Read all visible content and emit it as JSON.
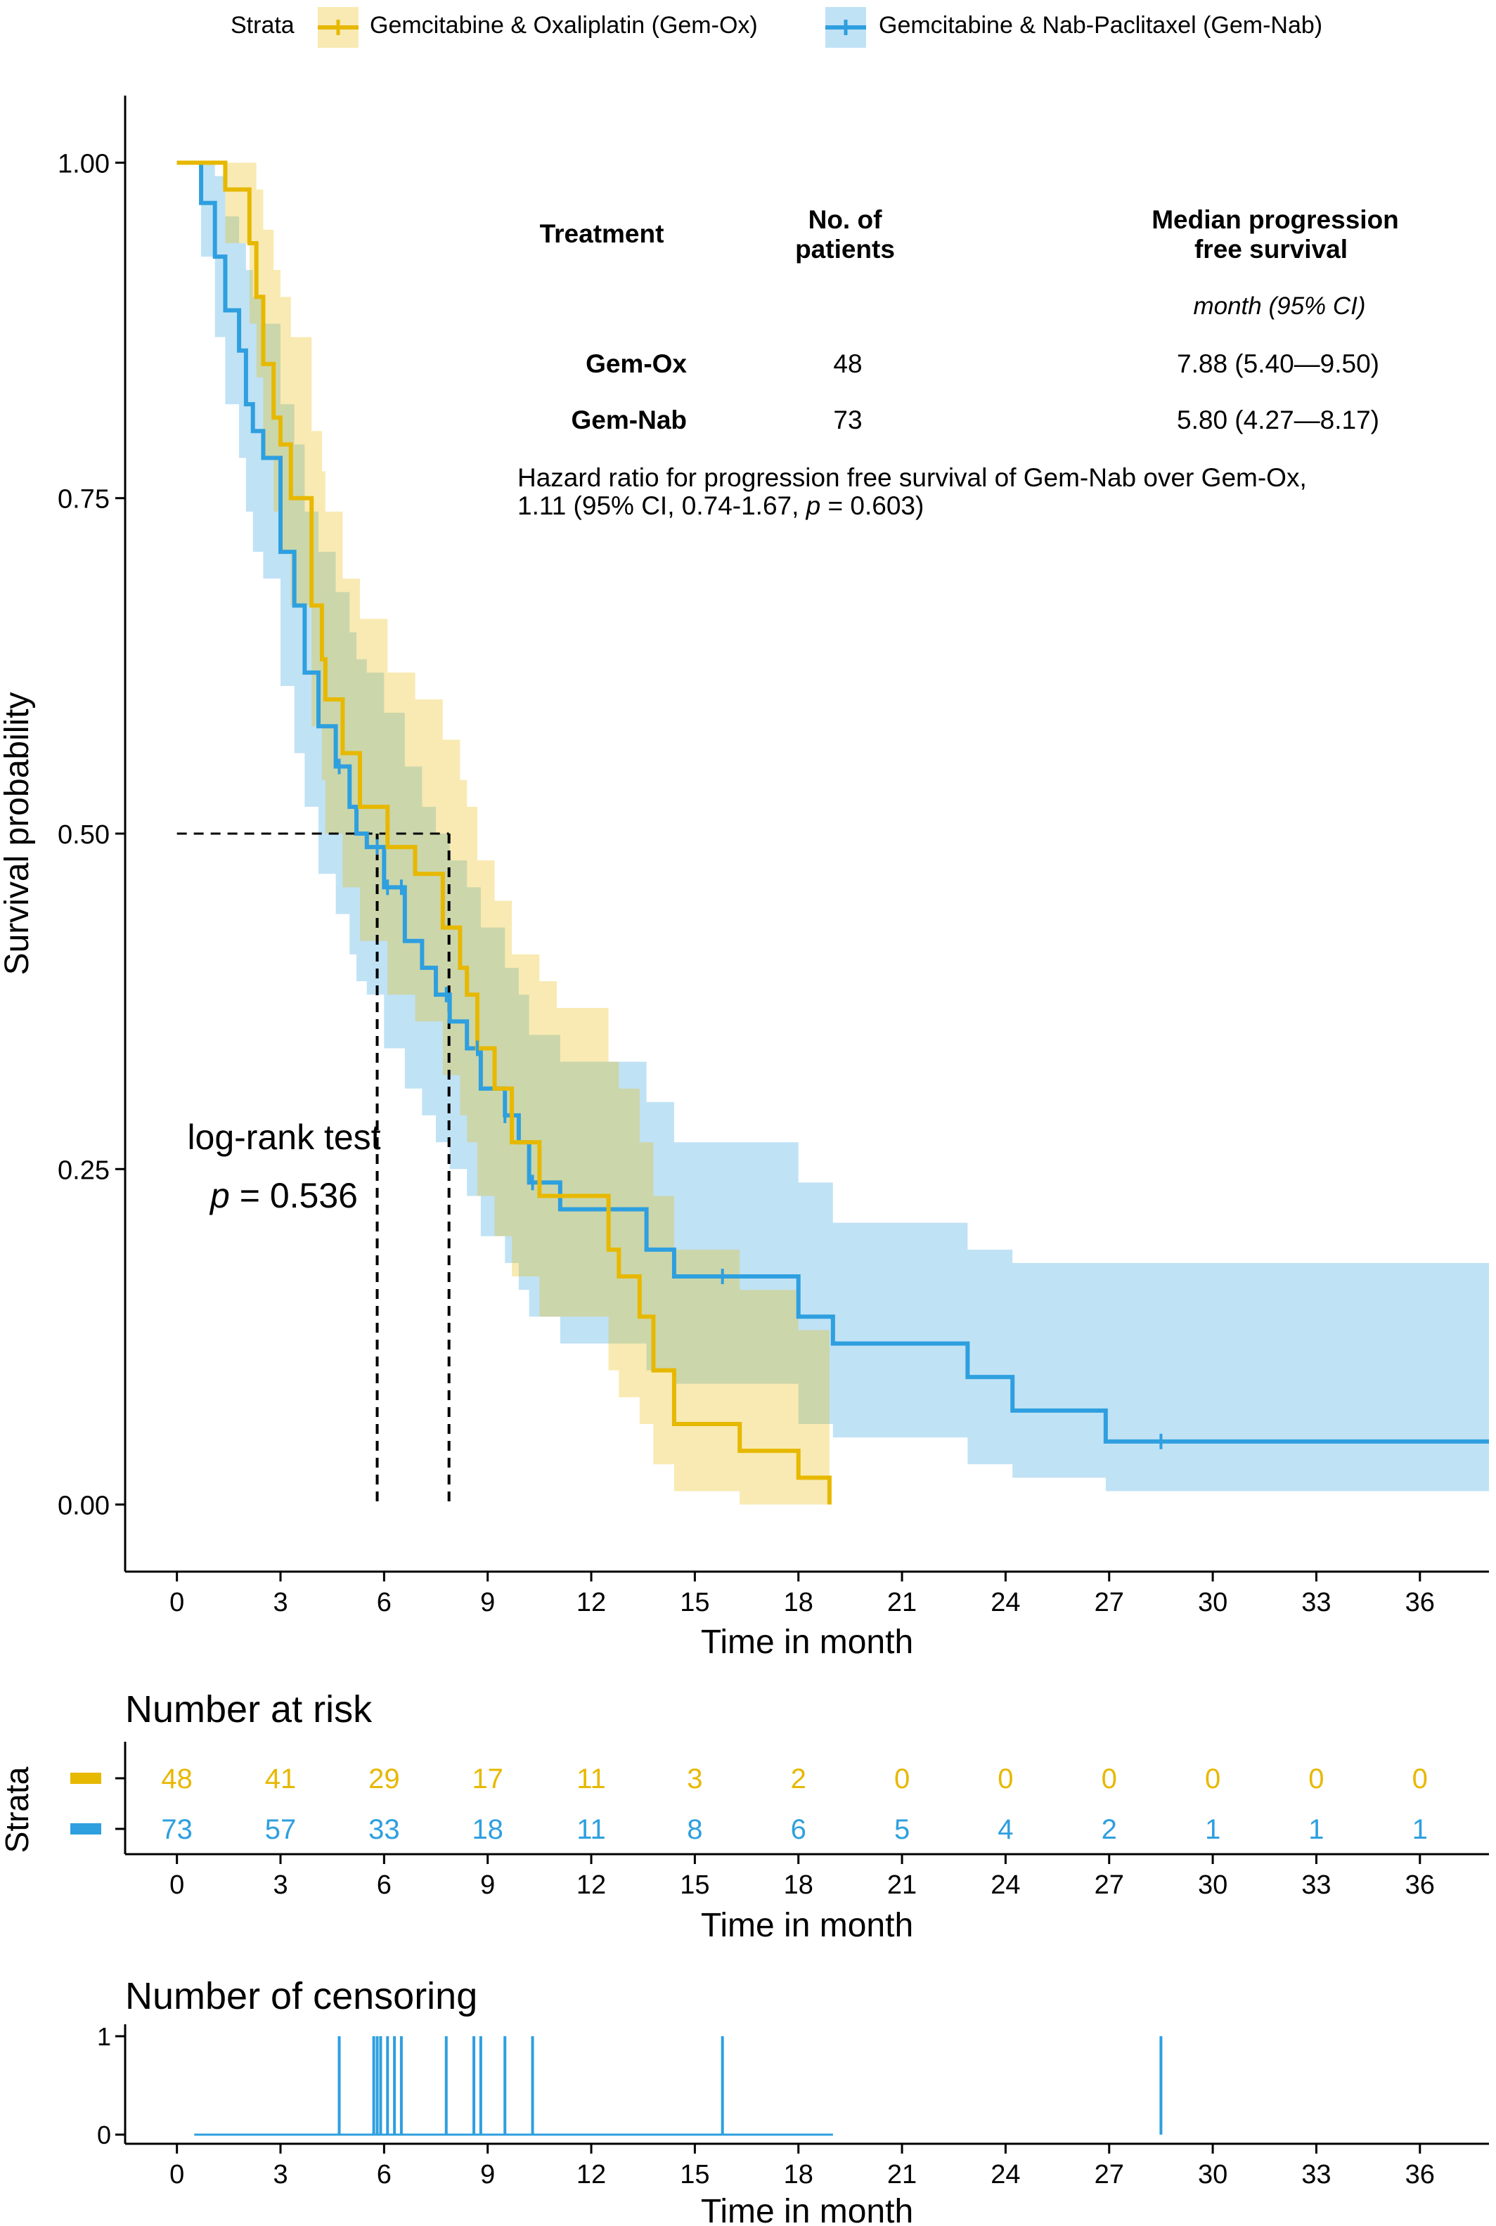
{
  "legend": {
    "title": "Strata",
    "items": [
      {
        "label": "Gemcitabine & Oxaliplatin (Gem-Ox)",
        "color": "#E7B800"
      },
      {
        "label": "Gemcitabine & Nab-Paclitaxel (Gem-Nab)",
        "color": "#2E9FDF"
      }
    ]
  },
  "table": {
    "headers": {
      "treatment": "Treatment",
      "patients": [
        "No. of",
        "patients"
      ],
      "median": [
        "Median progression",
        "free survival"
      ],
      "unit": "month (95% CI)"
    },
    "rows": [
      {
        "treatment": "Gem-Ox",
        "patients": "48",
        "median": "7.88 (5.40—9.50)"
      },
      {
        "treatment": "Gem-Nab",
        "patients": "73",
        "median": "5.80 (4.27—8.17)"
      }
    ],
    "hazard_line1": "Hazard ratio for progression free survival of Gem-Nab over Gem-Ox,",
    "hazard_line2_pre": "1.11 (95% CI, 0.74-1.67, ",
    "hazard_p": "p",
    "hazard_line2_post": " = 0.603)"
  },
  "annotation": {
    "test": "log-rank test",
    "p_label": "p",
    "p_value": " = 0.536"
  },
  "risk_title": "Number at risk",
  "censor_title": "Number of censoring",
  "strata_label": "Strata",
  "chart_data": [
    {
      "type": "line",
      "step": true,
      "xlabel": "Time in month",
      "ylabel": "Survival probability",
      "xlim": [
        -1.5,
        38
      ],
      "ylim": [
        -0.05,
        1.05
      ],
      "xticks": [
        0,
        3,
        6,
        9,
        12,
        15,
        18,
        21,
        24,
        27,
        30,
        33,
        36
      ],
      "yticks": [
        0,
        0.25,
        0.5,
        0.75,
        1.0
      ],
      "ytick_labels": [
        "0.00",
        "0.25",
        "0.50",
        "0.75",
        "1.00"
      ],
      "grid": false,
      "median_lines": [
        5.8,
        7.88
      ],
      "series": [
        {
          "name": "Gemcitabine & Oxaliplatin (Gem-Ox)",
          "color": "#E7B800",
          "x": [
            0,
            1.4,
            2.1,
            2.3,
            2.5,
            2.8,
            3.0,
            3.3,
            3.9,
            4.2,
            4.3,
            4.8,
            5.3,
            6.1,
            6.9,
            7.7,
            8.2,
            8.4,
            8.7,
            9.2,
            9.7,
            10.5,
            11.0,
            12.5,
            12.8,
            13.4,
            13.8,
            14.4,
            16.3,
            18.0,
            18.9
          ],
          "y": [
            1.0,
            0.98,
            0.94,
            0.9,
            0.85,
            0.81,
            0.79,
            0.75,
            0.67,
            0.63,
            0.6,
            0.56,
            0.52,
            0.49,
            0.47,
            0.43,
            0.4,
            0.38,
            0.34,
            0.31,
            0.27,
            0.23,
            0.23,
            0.19,
            0.17,
            0.14,
            0.1,
            0.06,
            0.04,
            0.02,
            0.0
          ],
          "ci_lower": [
            1.0,
            0.94,
            0.88,
            0.84,
            0.78,
            0.74,
            0.71,
            0.67,
            0.58,
            0.54,
            0.5,
            0.46,
            0.42,
            0.38,
            0.36,
            0.32,
            0.29,
            0.27,
            0.23,
            0.2,
            0.17,
            0.14,
            0.14,
            0.1,
            0.08,
            0.06,
            0.03,
            0.01,
            0.0,
            0.0,
            0.0
          ],
          "ci_upper": [
            1.0,
            1.0,
            1.0,
            0.98,
            0.95,
            0.92,
            0.9,
            0.87,
            0.8,
            0.77,
            0.74,
            0.69,
            0.66,
            0.62,
            0.6,
            0.57,
            0.54,
            0.52,
            0.48,
            0.45,
            0.41,
            0.39,
            0.37,
            0.33,
            0.31,
            0.27,
            0.23,
            0.19,
            0.16,
            0.13,
            0.08
          ]
        },
        {
          "name": "Gemcitabine & Nab-Paclitaxel (Gem-Nab)",
          "color": "#2E9FDF",
          "x": [
            0,
            0.7,
            1.1,
            1.4,
            1.8,
            2.0,
            2.2,
            2.5,
            3.0,
            3.4,
            3.7,
            4.1,
            4.6,
            5.0,
            5.2,
            5.5,
            6.0,
            6.6,
            7.1,
            7.5,
            7.9,
            8.4,
            8.8,
            9.5,
            9.9,
            10.2,
            11.1,
            13.6,
            14.4,
            18.0,
            19.0,
            22.9,
            24.2,
            26.9,
            38
          ],
          "y": [
            1.0,
            0.97,
            0.93,
            0.89,
            0.86,
            0.82,
            0.8,
            0.78,
            0.71,
            0.67,
            0.62,
            0.58,
            0.55,
            0.52,
            0.5,
            0.49,
            0.46,
            0.42,
            0.4,
            0.38,
            0.36,
            0.34,
            0.31,
            0.29,
            0.27,
            0.24,
            0.22,
            0.19,
            0.17,
            0.14,
            0.12,
            0.095,
            0.07,
            0.047,
            0.047
          ],
          "ci_lower": [
            1.0,
            0.93,
            0.87,
            0.82,
            0.78,
            0.74,
            0.71,
            0.69,
            0.61,
            0.56,
            0.52,
            0.47,
            0.44,
            0.41,
            0.39,
            0.38,
            0.34,
            0.31,
            0.29,
            0.27,
            0.25,
            0.23,
            0.2,
            0.18,
            0.16,
            0.14,
            0.12,
            0.1,
            0.09,
            0.06,
            0.05,
            0.03,
            0.02,
            0.01,
            0.01
          ],
          "ci_upper": [
            1.0,
            1.0,
            0.99,
            0.96,
            0.94,
            0.92,
            0.9,
            0.88,
            0.82,
            0.79,
            0.74,
            0.71,
            0.68,
            0.65,
            0.63,
            0.62,
            0.59,
            0.55,
            0.52,
            0.5,
            0.48,
            0.46,
            0.43,
            0.4,
            0.38,
            0.35,
            0.33,
            0.3,
            0.27,
            0.24,
            0.21,
            0.19,
            0.18,
            0.18,
            0.18
          ]
        }
      ],
      "censor_marks": {
        "Gem-Nab": [
          4.7,
          5.8,
          6.1,
          6.5,
          7.8,
          8.7,
          9.5,
          10.3,
          15.8,
          28.5
        ]
      }
    },
    {
      "type": "table",
      "title": "Number at risk",
      "xlabel": "Time in month",
      "times": [
        0,
        3,
        6,
        9,
        12,
        15,
        18,
        21,
        24,
        27,
        30,
        33,
        36
      ],
      "rows": [
        {
          "name": "Gem-Ox",
          "color": "#E7B800",
          "values": [
            48,
            41,
            29,
            17,
            11,
            3,
            2,
            0,
            0,
            0,
            0,
            0,
            0
          ]
        },
        {
          "name": "Gem-Nab",
          "color": "#2E9FDF",
          "values": [
            73,
            57,
            33,
            18,
            11,
            8,
            6,
            5,
            4,
            2,
            1,
            1,
            1
          ]
        }
      ]
    },
    {
      "type": "bar",
      "title": "Number of censoring",
      "xlabel": "Time in month",
      "yticks": [
        0,
        1
      ],
      "xticks": [
        0,
        3,
        6,
        9,
        12,
        15,
        18,
        21,
        24,
        27,
        30,
        33,
        36
      ],
      "series": [
        {
          "color": "#2E9FDF",
          "x": [
            4.7,
            5.7,
            5.8,
            5.9,
            6.1,
            6.3,
            6.5,
            7.8,
            8.6,
            8.8,
            9.5,
            10.3,
            15.8,
            28.5
          ],
          "values": [
            1,
            1,
            1,
            1,
            1,
            1,
            1,
            1,
            1,
            1,
            1,
            1,
            1,
            1
          ]
        }
      ]
    }
  ]
}
